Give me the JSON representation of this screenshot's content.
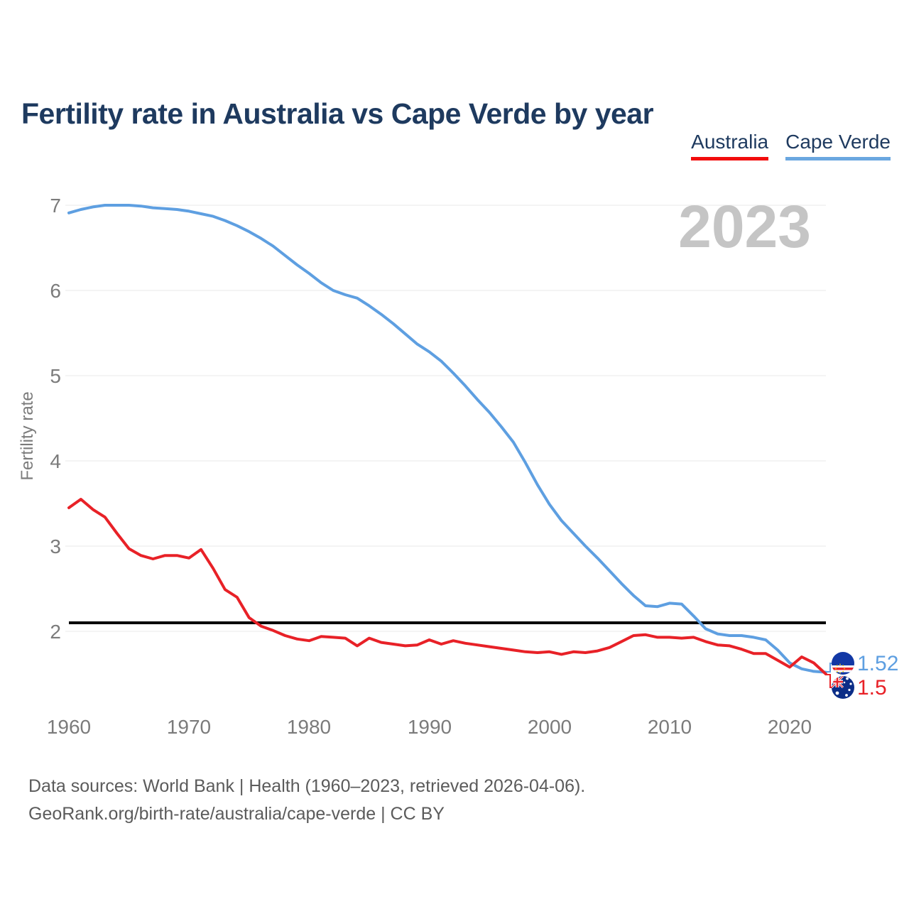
{
  "title": "Fertility rate in Australia vs Cape Verde by year",
  "watermark": "2023",
  "legend": [
    {
      "label": "Australia",
      "color": "#e82127",
      "underline_color": "#f20c0c"
    },
    {
      "label": "Cape Verde",
      "color": "#5e9fe1",
      "underline_color": "#6aa7e0"
    }
  ],
  "y_axis": {
    "label": "Fertility rate",
    "ticks": [
      7,
      6,
      5,
      4,
      3,
      2
    ]
  },
  "x_axis": {
    "ticks": [
      1960,
      1970,
      1980,
      1990,
      2000,
      2010,
      2020
    ]
  },
  "reference_line": {
    "value": 2.1,
    "color": "#000000"
  },
  "end_labels": {
    "cape_verde": {
      "value": "1.52",
      "icon": "cape-verde-flag-icon",
      "color": "#5e9fe1"
    },
    "australia": {
      "value": "1.5",
      "icon": "australia-flag-icon",
      "color": "#e82127"
    }
  },
  "footer": {
    "line1": "Data sources: World Bank | Health (1960–2023, retrieved 2026-04-06).",
    "line2": "GeoRank.org/birth-rate/australia/cape-verde | CC BY"
  },
  "chart_data": {
    "type": "line",
    "title": "Fertility rate in Australia vs Cape Verde by year",
    "xlabel": "",
    "ylabel": "Fertility rate",
    "xlim": [
      1960,
      2023
    ],
    "ylim": [
      1.4,
      7.1
    ],
    "grid": true,
    "legend_position": "top-right",
    "reference_line_value": 2.1,
    "x": [
      1960,
      1961,
      1962,
      1963,
      1964,
      1965,
      1966,
      1967,
      1968,
      1969,
      1970,
      1971,
      1972,
      1973,
      1974,
      1975,
      1976,
      1977,
      1978,
      1979,
      1980,
      1981,
      1982,
      1983,
      1984,
      1985,
      1986,
      1987,
      1988,
      1989,
      1990,
      1991,
      1992,
      1993,
      1994,
      1995,
      1996,
      1997,
      1998,
      1999,
      2000,
      2001,
      2002,
      2003,
      2004,
      2005,
      2006,
      2007,
      2008,
      2009,
      2010,
      2011,
      2012,
      2013,
      2014,
      2015,
      2016,
      2017,
      2018,
      2019,
      2020,
      2021,
      2022,
      2023
    ],
    "series": [
      {
        "name": "Australia",
        "color": "#e82127",
        "values": [
          3.45,
          3.55,
          3.43,
          3.34,
          3.15,
          2.97,
          2.89,
          2.85,
          2.89,
          2.89,
          2.86,
          2.96,
          2.74,
          2.49,
          2.4,
          2.16,
          2.06,
          2.01,
          1.95,
          1.91,
          1.89,
          1.94,
          1.93,
          1.92,
          1.83,
          1.92,
          1.87,
          1.85,
          1.83,
          1.84,
          1.9,
          1.85,
          1.89,
          1.86,
          1.84,
          1.82,
          1.8,
          1.78,
          1.76,
          1.75,
          1.76,
          1.73,
          1.76,
          1.75,
          1.77,
          1.81,
          1.88,
          1.95,
          1.96,
          1.93,
          1.93,
          1.92,
          1.93,
          1.88,
          1.84,
          1.83,
          1.79,
          1.74,
          1.74,
          1.66,
          1.58,
          1.7,
          1.63,
          1.5
        ]
      },
      {
        "name": "Cape Verde",
        "color": "#5e9fe1",
        "values": [
          6.91,
          6.95,
          6.98,
          7.0,
          7.0,
          7.0,
          6.99,
          6.97,
          6.96,
          6.95,
          6.93,
          6.9,
          6.87,
          6.82,
          6.76,
          6.69,
          6.61,
          6.52,
          6.41,
          6.3,
          6.2,
          6.09,
          6.0,
          5.95,
          5.91,
          5.82,
          5.72,
          5.61,
          5.49,
          5.37,
          5.28,
          5.17,
          5.03,
          4.88,
          4.72,
          4.57,
          4.4,
          4.22,
          3.98,
          3.72,
          3.49,
          3.3,
          3.15,
          3.0,
          2.86,
          2.71,
          2.56,
          2.42,
          2.3,
          2.29,
          2.33,
          2.32,
          2.18,
          2.03,
          1.97,
          1.95,
          1.95,
          1.93,
          1.9,
          1.78,
          1.63,
          1.56,
          1.53,
          1.52
        ]
      }
    ]
  }
}
